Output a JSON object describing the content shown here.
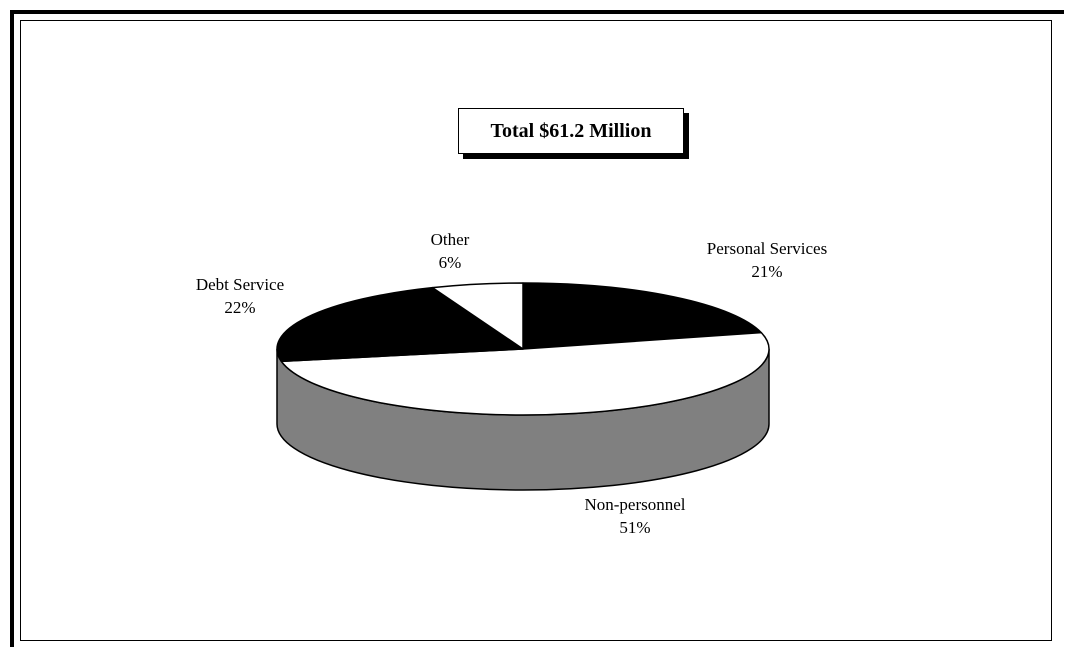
{
  "chart_data": {
    "type": "pie",
    "title": "Total $61.2 Million",
    "slices": [
      {
        "label": "Personal Services",
        "value": 21,
        "value_label": "21%",
        "color": "#000000"
      },
      {
        "label": "Non-personnel",
        "value": 51,
        "value_label": "51%",
        "color": "#ffffff"
      },
      {
        "label": "Debt Service",
        "value": 22,
        "value_label": "22%",
        "color": "#000000"
      },
      {
        "label": "Other",
        "value": 6,
        "value_label": "6%",
        "color": "#ffffff"
      }
    ],
    "side_color": "#808080",
    "style": "3d"
  }
}
